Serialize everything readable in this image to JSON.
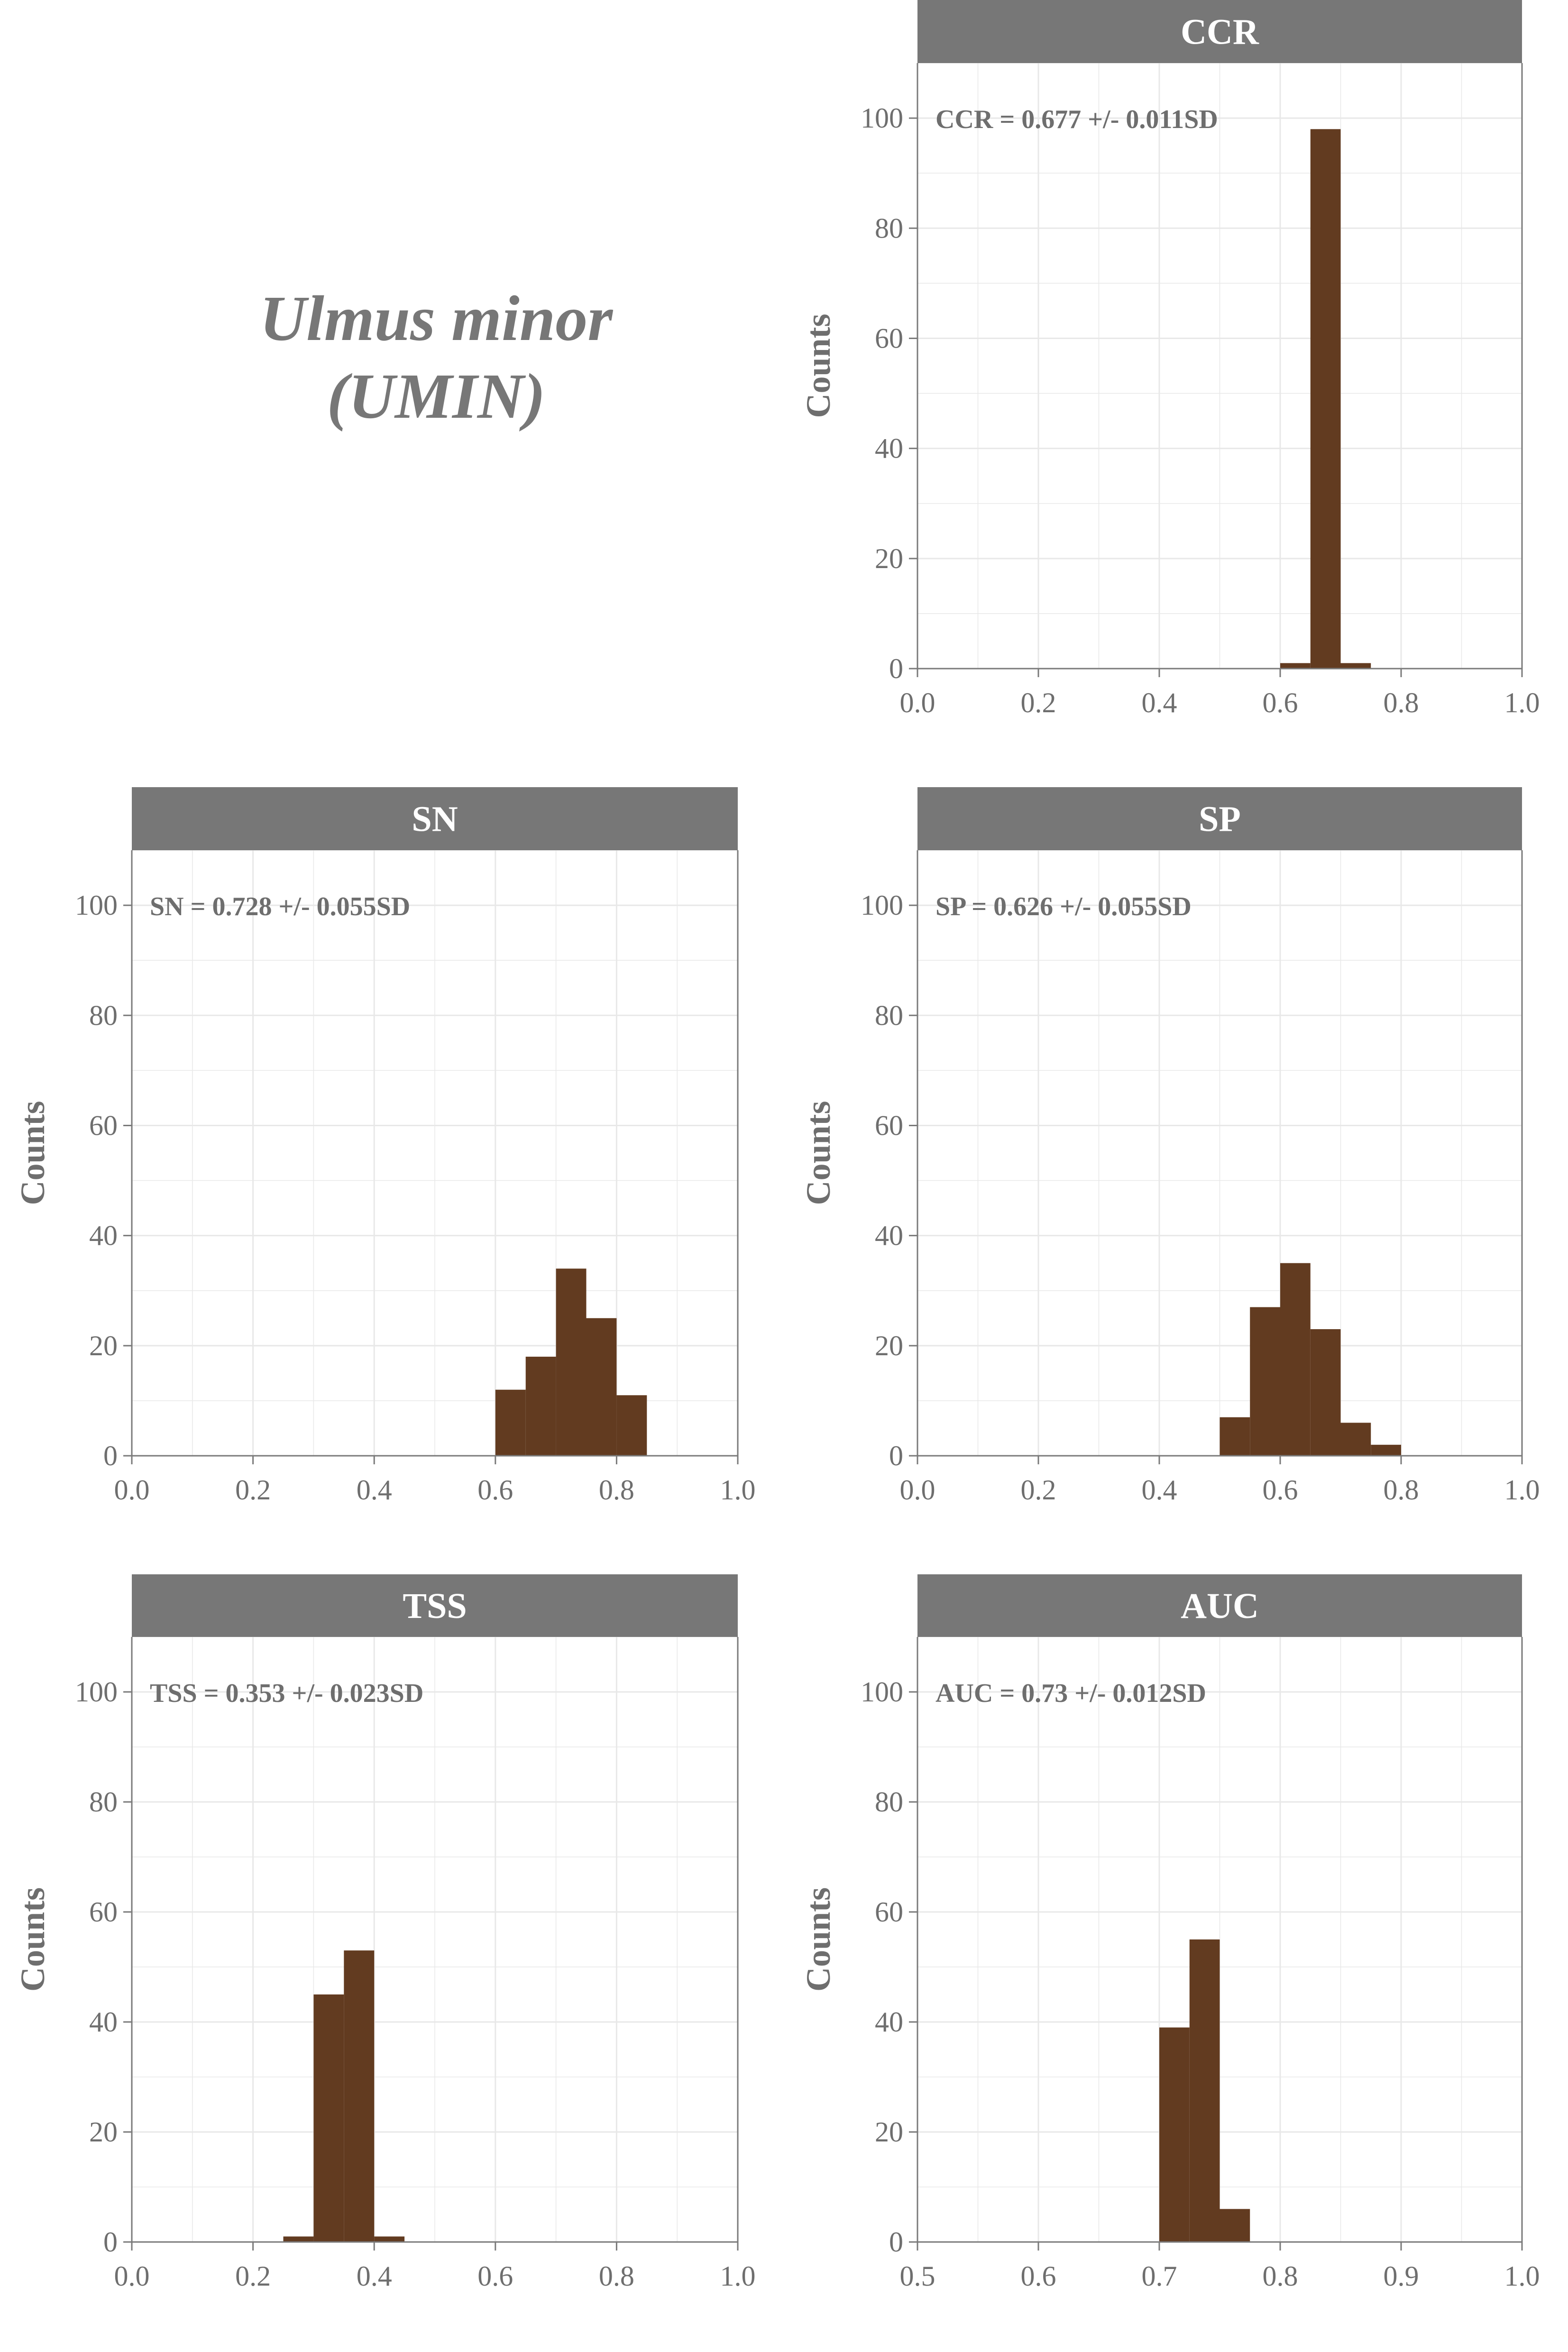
{
  "figure": {
    "species_name": "Ulmus minor",
    "species_code": "(UMIN)"
  },
  "colors": {
    "bar_fill": "#623b20",
    "strip_fill": "#777777",
    "strip_text": "#ffffff",
    "axis_text": "#6e6e6e",
    "grid": "#e8e8e8",
    "axis_line": "#7a7a7a"
  },
  "chart_data": [
    {
      "type": "bar",
      "panel": "CCR",
      "title": "CCR",
      "annotation": "CCR = 0.677 +/- 0.011SD",
      "xlabel": "",
      "ylabel": "Counts",
      "xlim": [
        0.0,
        1.0
      ],
      "ylim": [
        0,
        110
      ],
      "xticks": [
        "0.0",
        "0.2",
        "0.4",
        "0.6",
        "0.8",
        "1.0"
      ],
      "yticks": [
        "0",
        "20",
        "40",
        "60",
        "80",
        "100"
      ],
      "bin_edges": [
        0.6,
        0.65,
        0.7,
        0.75
      ],
      "values": [
        1,
        98,
        1
      ],
      "grid": true
    },
    {
      "type": "bar",
      "panel": "SN",
      "title": "SN",
      "annotation": "SN = 0.728 +/- 0.055SD",
      "xlabel": "",
      "ylabel": "Counts",
      "xlim": [
        0.0,
        1.0
      ],
      "ylim": [
        0,
        110
      ],
      "xticks": [
        "0.0",
        "0.2",
        "0.4",
        "0.6",
        "0.8",
        "1.0"
      ],
      "yticks": [
        "0",
        "20",
        "40",
        "60",
        "80",
        "100"
      ],
      "bin_edges": [
        0.6,
        0.65,
        0.7,
        0.75,
        0.8,
        0.85
      ],
      "values": [
        12,
        18,
        34,
        25,
        11
      ],
      "grid": true
    },
    {
      "type": "bar",
      "panel": "SP",
      "title": "SP",
      "annotation": "SP = 0.626 +/- 0.055SD",
      "xlabel": "",
      "ylabel": "Counts",
      "xlim": [
        0.0,
        1.0
      ],
      "ylim": [
        0,
        110
      ],
      "xticks": [
        "0.0",
        "0.2",
        "0.4",
        "0.6",
        "0.8",
        "1.0"
      ],
      "yticks": [
        "0",
        "20",
        "40",
        "60",
        "80",
        "100"
      ],
      "bin_edges": [
        0.5,
        0.55,
        0.6,
        0.65,
        0.7,
        0.75,
        0.8
      ],
      "values": [
        7,
        27,
        35,
        23,
        6,
        2
      ],
      "grid": true
    },
    {
      "type": "bar",
      "panel": "TSS",
      "title": "TSS",
      "annotation": "TSS = 0.353 +/- 0.023SD",
      "xlabel": "",
      "ylabel": "Counts",
      "xlim": [
        0.0,
        1.0
      ],
      "ylim": [
        0,
        110
      ],
      "xticks": [
        "0.0",
        "0.2",
        "0.4",
        "0.6",
        "0.8",
        "1.0"
      ],
      "yticks": [
        "0",
        "20",
        "40",
        "60",
        "80",
        "100"
      ],
      "bin_edges": [
        0.25,
        0.3,
        0.35,
        0.4,
        0.45
      ],
      "values": [
        1,
        45,
        53,
        1
      ],
      "grid": true
    },
    {
      "type": "bar",
      "panel": "AUC",
      "title": "AUC",
      "annotation": "AUC = 0.73 +/- 0.012SD",
      "xlabel": "",
      "ylabel": "Counts",
      "xlim": [
        0.5,
        1.0
      ],
      "ylim": [
        0,
        110
      ],
      "xticks": [
        "0.5",
        "0.6",
        "0.7",
        "0.8",
        "0.9",
        "1.0"
      ],
      "yticks": [
        "0",
        "20",
        "40",
        "60",
        "80",
        "100"
      ],
      "bin_edges": [
        0.7,
        0.725,
        0.75,
        0.775
      ],
      "values": [
        39,
        55,
        6
      ],
      "grid": true
    }
  ]
}
